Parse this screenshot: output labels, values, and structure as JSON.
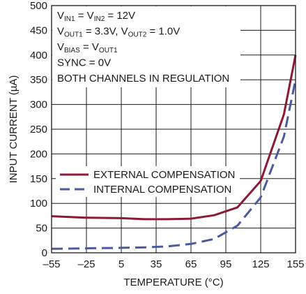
{
  "chart_data": {
    "type": "line",
    "xlabel": "TEMPERATURE (°C)",
    "ylabel": "INPUT CURRENT (µA)",
    "xlim": [
      -55,
      155
    ],
    "ylim": [
      0,
      500
    ],
    "x_ticks": [
      -55,
      -25,
      5,
      35,
      65,
      95,
      125,
      155
    ],
    "x_tick_labels": [
      "–55",
      "–25",
      "5",
      "35",
      "65",
      "95",
      "125",
      "155"
    ],
    "y_ticks": [
      0,
      50,
      100,
      150,
      200,
      250,
      300,
      350,
      400,
      450,
      500
    ],
    "y_tick_labels": [
      "0",
      "50",
      "100",
      "150",
      "200",
      "250",
      "300",
      "350",
      "400",
      "450",
      "500"
    ],
    "grid": true,
    "legend_position": "middle-left",
    "conditions": [
      {
        "parts": [
          {
            "t": "V"
          },
          {
            "t": "IN1",
            "sub": true
          },
          {
            "t": " = V"
          },
          {
            "t": "IN2",
            "sub": true
          },
          {
            "t": " = 12V"
          }
        ]
      },
      {
        "parts": [
          {
            "t": "V"
          },
          {
            "t": "OUT1",
            "sub": true
          },
          {
            "t": " = 3.3V, V"
          },
          {
            "t": "OUT2",
            "sub": true
          },
          {
            "t": " = 1.0V"
          }
        ]
      },
      {
        "parts": [
          {
            "t": "V"
          },
          {
            "t": "BIAS",
            "sub": true
          },
          {
            "t": " = V"
          },
          {
            "t": "OUT1",
            "sub": true
          }
        ]
      },
      {
        "parts": [
          {
            "t": "SYNC = 0V"
          }
        ]
      },
      {
        "parts": [
          {
            "t": "BOTH CHANNELS IN REGULATION"
          }
        ]
      }
    ],
    "series": [
      {
        "name": "EXTERNAL COMPENSATION",
        "color": "#8b1a35",
        "dash": "solid",
        "x": [
          -55,
          -25,
          5,
          25,
          45,
          65,
          85,
          105,
          125,
          145,
          155
        ],
        "y": [
          74,
          71,
          70,
          68,
          68,
          69,
          76,
          92,
          145,
          280,
          400
        ]
      },
      {
        "name": "INTERNAL COMPENSATION",
        "color": "#4a5a9e",
        "dash": "dashed",
        "x": [
          -55,
          -25,
          5,
          25,
          45,
          65,
          85,
          105,
          125,
          145,
          155
        ],
        "y": [
          8,
          9,
          10,
          11,
          13,
          18,
          28,
          55,
          112,
          235,
          350
        ]
      }
    ]
  }
}
